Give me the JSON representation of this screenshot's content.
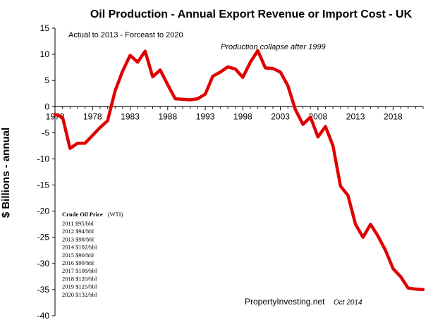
{
  "chart_data": {
    "type": "line",
    "title": "Oil Production - Annual Export Revenue or Import Cost - UK",
    "ylabel": "$ Billions - annual",
    "xlabel": "",
    "x_tick_labels": [
      "1973",
      "1978",
      "1983",
      "1988",
      "1993",
      "1998",
      "2003",
      "2008",
      "2013",
      "2018"
    ],
    "y_tick_labels": [
      "15",
      "10",
      "5",
      "0",
      "-5",
      "-10",
      "-15",
      "-20",
      "-25",
      "-30",
      "-35",
      "-40"
    ],
    "ylim": [
      -40,
      15
    ],
    "xlim": [
      1973,
      2022
    ],
    "grid": false,
    "series_color": "#e00000",
    "x": [
      1973,
      1974,
      1975,
      1976,
      1977,
      1978,
      1979,
      1980,
      1981,
      1982,
      1983,
      1984,
      1985,
      1986,
      1987,
      1988,
      1989,
      1990,
      1991,
      1992,
      1993,
      1994,
      1995,
      1996,
      1997,
      1998,
      1999,
      2000,
      2001,
      2002,
      2003,
      2004,
      2005,
      2006,
      2007,
      2008,
      2009,
      2010,
      2011,
      2012,
      2013,
      2014,
      2015,
      2016,
      2017,
      2018,
      2019,
      2020,
      2021,
      2022
    ],
    "values": [
      -1.5,
      -2,
      -8,
      -7,
      -7,
      -5.5,
      -4,
      -2.7,
      3,
      6.8,
      9.8,
      8.5,
      10.6,
      5.7,
      7,
      4.2,
      1.5,
      1.4,
      1.3,
      1.5,
      2.4,
      5.8,
      6.6,
      7.6,
      7.2,
      5.6,
      8.5,
      10.7,
      7.4,
      7.3,
      6.6,
      4,
      -0.6,
      -3.4,
      -2,
      -5.8,
      -3.8,
      -7.5,
      -15.2,
      -17,
      -22.5,
      -25,
      -22.5,
      -24.8,
      -27.5,
      -31,
      -32.5,
      -34.7,
      -34.9,
      -35
    ],
    "annotations": {
      "top_note": "Actual to 2013 - Forceast to 2020",
      "collapse_note": "Production collapse after 1999",
      "price_title": "Crude Oil Price",
      "price_title_suffix": "(WTI)",
      "price_list": [
        "2011 $95/bbl",
        "2012 $94/bbl",
        "2013 $98/bbl",
        "2014 $102/bbl",
        "2015 $90/bbl",
        "2016 $99/bbl",
        "2017 $108/bbl",
        "2018 $120/bbl",
        "2019 $125/bbl",
        "2020 $132/bbl"
      ],
      "source": "PropertyInvesting.net",
      "source_date": "Oct 2014"
    }
  }
}
